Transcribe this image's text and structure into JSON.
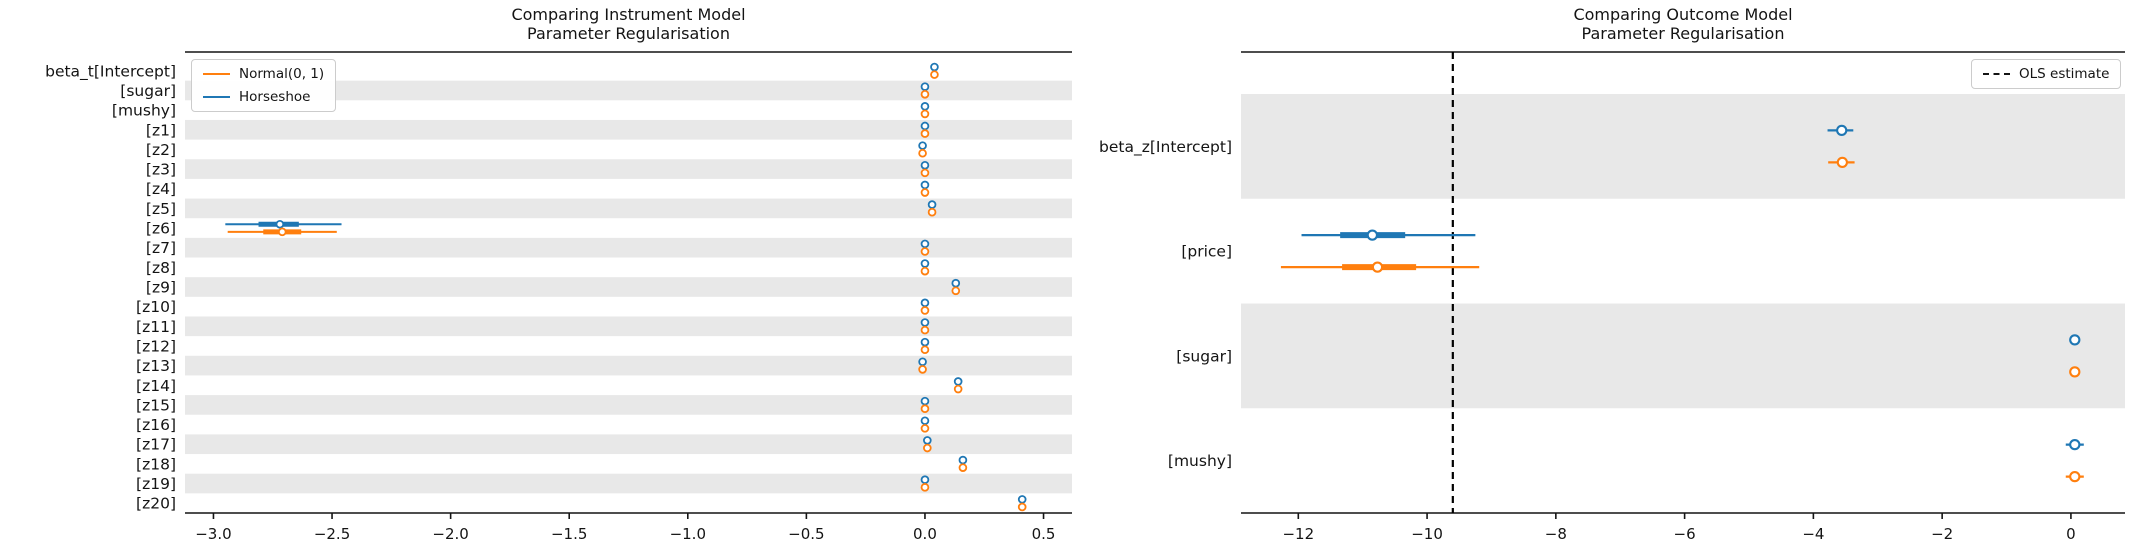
{
  "figure": {
    "background": "#ffffff",
    "band_color": "#e8e8e8",
    "axis_color": "#141414",
    "blue": "#1f77b4",
    "orange": "#ff7f0e"
  },
  "chart_data": [
    {
      "id": "instrument-model",
      "type": "forest",
      "title_lines": [
        "Comparing Instrument Model",
        "Parameter Regularisation"
      ],
      "legend": {
        "position": "top-left",
        "entries": [
          {
            "label": "Normal(0, 1)",
            "color": "#ff7f0e",
            "dash": false
          },
          {
            "label": "Horseshoe",
            "color": "#1f77b4",
            "dash": false
          }
        ]
      },
      "xlim": [
        -3.12,
        0.62
      ],
      "xticks": [
        {
          "v": -3.0,
          "label": "−3.0"
        },
        {
          "v": -2.5,
          "label": "−2.5"
        },
        {
          "v": -2.0,
          "label": "−2.0"
        },
        {
          "v": -1.5,
          "label": "−1.5"
        },
        {
          "v": -1.0,
          "label": "−1.0"
        },
        {
          "v": -0.5,
          "label": "−0.5"
        },
        {
          "v": 0.0,
          "label": "0.0"
        },
        {
          "v": 0.5,
          "label": "0.5"
        }
      ],
      "band_start_index": 1,
      "params": [
        "beta_t[Intercept]",
        "[sugar]",
        "[mushy]",
        "[z1]",
        "[z2]",
        "[z3]",
        "[z4]",
        "[z5]",
        "[z6]",
        "[z7]",
        "[z8]",
        "[z9]",
        "[z10]",
        "[z11]",
        "[z12]",
        "[z13]",
        "[z14]",
        "[z15]",
        "[z16]",
        "[z17]",
        "[z18]",
        "[z19]",
        "[z20]"
      ],
      "series": [
        {
          "name": "Horseshoe",
          "color": "#1f77b4",
          "mean": [
            0.04,
            0.0,
            0.0,
            0.0,
            -0.01,
            0.0,
            0.0,
            0.03,
            -2.72,
            0.0,
            0.0,
            0.13,
            0.0,
            0.0,
            0.0,
            -0.01,
            0.14,
            0.0,
            0.0,
            0.01,
            0.16,
            0.0,
            0.41
          ],
          "hdi_low": [
            0.04,
            0.0,
            0.0,
            0.0,
            -0.01,
            0.0,
            0.0,
            0.03,
            -2.95,
            0.0,
            0.0,
            0.13,
            0.0,
            0.0,
            0.0,
            -0.01,
            0.14,
            0.0,
            0.0,
            0.01,
            0.16,
            0.0,
            0.41
          ],
          "hdi_high": [
            0.04,
            0.0,
            0.0,
            0.0,
            -0.01,
            0.0,
            0.0,
            0.03,
            -2.46,
            0.0,
            0.0,
            0.13,
            0.0,
            0.0,
            0.0,
            -0.01,
            0.14,
            0.0,
            0.0,
            0.01,
            0.16,
            0.0,
            0.41
          ],
          "q50_low": [
            0.04,
            0.0,
            0.0,
            0.0,
            -0.01,
            0.0,
            0.0,
            0.03,
            -2.81,
            0.0,
            0.0,
            0.13,
            0.0,
            0.0,
            0.0,
            -0.01,
            0.14,
            0.0,
            0.0,
            0.01,
            0.16,
            0.0,
            0.41
          ],
          "q50_high": [
            0.04,
            0.0,
            0.0,
            0.0,
            -0.01,
            0.0,
            0.0,
            0.03,
            -2.64,
            0.0,
            0.0,
            0.13,
            0.0,
            0.0,
            0.0,
            -0.01,
            0.14,
            0.0,
            0.0,
            0.01,
            0.16,
            0.0,
            0.41
          ]
        },
        {
          "name": "Normal(0, 1)",
          "color": "#ff7f0e",
          "mean": [
            0.04,
            0.0,
            0.0,
            0.0,
            -0.01,
            0.0,
            0.0,
            0.03,
            -2.71,
            0.0,
            0.0,
            0.13,
            0.0,
            0.0,
            0.0,
            -0.01,
            0.14,
            0.0,
            0.0,
            0.01,
            0.16,
            0.0,
            0.41
          ],
          "hdi_low": [
            0.04,
            0.0,
            0.0,
            0.0,
            -0.01,
            0.0,
            0.0,
            0.03,
            -2.94,
            0.0,
            0.0,
            0.13,
            0.0,
            0.0,
            0.0,
            -0.01,
            0.14,
            0.0,
            0.0,
            0.01,
            0.16,
            0.0,
            0.41
          ],
          "hdi_high": [
            0.04,
            0.0,
            0.0,
            0.0,
            -0.01,
            0.0,
            0.0,
            0.03,
            -2.48,
            0.0,
            0.0,
            0.13,
            0.0,
            0.0,
            0.0,
            -0.01,
            0.14,
            0.0,
            0.0,
            0.01,
            0.16,
            0.0,
            0.41
          ],
          "q50_low": [
            0.04,
            0.0,
            0.0,
            0.0,
            -0.01,
            0.0,
            0.0,
            0.03,
            -2.79,
            0.0,
            0.0,
            0.13,
            0.0,
            0.0,
            0.0,
            -0.01,
            0.14,
            0.0,
            0.0,
            0.01,
            0.16,
            0.0,
            0.41
          ],
          "q50_high": [
            0.04,
            0.0,
            0.0,
            0.0,
            -0.01,
            0.0,
            0.0,
            0.03,
            -2.63,
            0.0,
            0.0,
            0.13,
            0.0,
            0.0,
            0.0,
            -0.01,
            0.14,
            0.0,
            0.0,
            0.01,
            0.16,
            0.0,
            0.41
          ]
        }
      ]
    },
    {
      "id": "outcome-model",
      "type": "forest",
      "title_lines": [
        "Comparing Outcome Model",
        "Parameter Regularisation"
      ],
      "legend": {
        "position": "top-right",
        "entries": [
          {
            "label": "OLS estimate",
            "color": "#141414",
            "dash": true
          }
        ]
      },
      "vline": {
        "v": -9.6,
        "label": "OLS estimate"
      },
      "xlim": [
        -12.89,
        0.84
      ],
      "xticks": [
        {
          "v": -12,
          "label": "−12"
        },
        {
          "v": -10,
          "label": "−10"
        },
        {
          "v": -8,
          "label": "−8"
        },
        {
          "v": -6,
          "label": "−6"
        },
        {
          "v": -4,
          "label": "−4"
        },
        {
          "v": -2,
          "label": "−2"
        },
        {
          "v": 0,
          "label": "0"
        }
      ],
      "band_start_index": 0,
      "params": [
        "beta_z[Intercept]",
        "[price]",
        "[sugar]",
        "[mushy]"
      ],
      "series": [
        {
          "name": "Horseshoe",
          "color": "#1f77b4",
          "mean": [
            -3.56,
            -10.85,
            0.06,
            0.06
          ],
          "hdi_low": [
            -3.78,
            -11.95,
            0.03,
            -0.08
          ],
          "hdi_high": [
            -3.38,
            -9.25,
            0.09,
            0.2
          ],
          "q50_low": [
            -3.62,
            -11.35,
            0.05,
            0.02
          ],
          "q50_high": [
            -3.5,
            -10.34,
            0.07,
            0.1
          ]
        },
        {
          "name": "Normal(0, 1)",
          "color": "#ff7f0e",
          "mean": [
            -3.55,
            -10.77,
            0.06,
            0.06
          ],
          "hdi_low": [
            -3.77,
            -12.27,
            0.03,
            -0.08
          ],
          "hdi_high": [
            -3.36,
            -9.19,
            0.09,
            0.2
          ],
          "q50_low": [
            -3.61,
            -11.32,
            0.05,
            0.02
          ],
          "q50_high": [
            -3.48,
            -10.17,
            0.07,
            0.1
          ]
        }
      ]
    }
  ]
}
